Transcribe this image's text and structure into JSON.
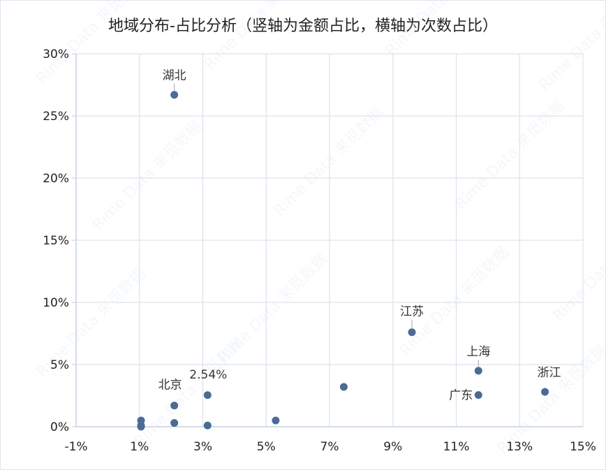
{
  "chart_data": {
    "type": "scatter",
    "title": "地域分布-占比分析（竖轴为金额占比，横轴为次数占比）",
    "xlabel": "",
    "ylabel": "",
    "xlim": [
      -1,
      15
    ],
    "ylim": [
      0,
      30
    ],
    "x_ticks": [
      "-1%",
      "1%",
      "3%",
      "5%",
      "7%",
      "9%",
      "11%",
      "13%",
      "15%"
    ],
    "y_ticks": [
      "0%",
      "5%",
      "10%",
      "15%",
      "20%",
      "25%",
      "30%"
    ],
    "grid": true,
    "point_color": "#4b6b95",
    "points": [
      {
        "x": 2.1,
        "y": 26.7,
        "label": "湖北"
      },
      {
        "x": 9.6,
        "y": 7.6,
        "label": "江苏"
      },
      {
        "x": 11.7,
        "y": 4.5,
        "label": "上海"
      },
      {
        "x": 13.8,
        "y": 2.8,
        "label": "浙江"
      },
      {
        "x": 11.7,
        "y": 2.55,
        "label": "广东"
      },
      {
        "x": 2.1,
        "y": 1.7,
        "label": "北京"
      },
      {
        "x": 3.15,
        "y": 2.54,
        "label": "2.54%"
      },
      {
        "x": 7.45,
        "y": 3.2,
        "label": ""
      },
      {
        "x": 5.3,
        "y": 0.5,
        "label": ""
      },
      {
        "x": 3.15,
        "y": 0.1,
        "label": ""
      },
      {
        "x": 2.1,
        "y": 0.3,
        "label": ""
      },
      {
        "x": 1.05,
        "y": 0.5,
        "label": ""
      },
      {
        "x": 1.05,
        "y": 0.1,
        "label": ""
      },
      {
        "x": 1.05,
        "y": 0.0,
        "label": ""
      }
    ]
  },
  "watermark_text": "Rime Data 来觅数据"
}
